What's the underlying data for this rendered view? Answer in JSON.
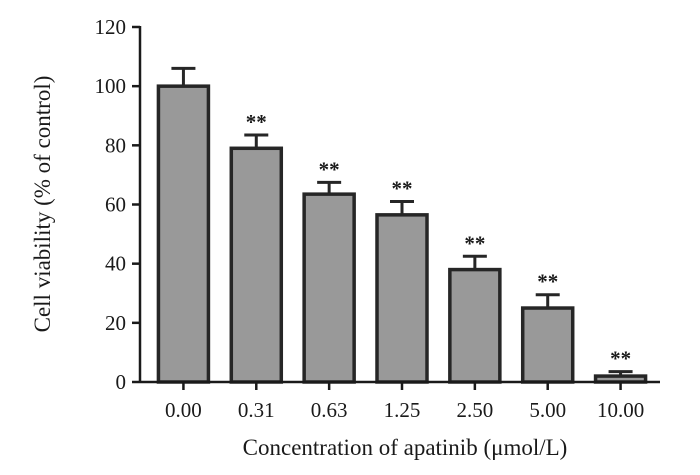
{
  "chart_data": {
    "type": "bar",
    "categories": [
      "0.00",
      "0.31",
      "0.63",
      "1.25",
      "2.50",
      "5.00",
      "10.00"
    ],
    "values": [
      100,
      79,
      63.5,
      56.5,
      38,
      25,
      2
    ],
    "errors": [
      6,
      4.5,
      4,
      4.5,
      4.5,
      4.5,
      1.5
    ],
    "annotations": [
      "",
      "**",
      "**",
      "**",
      "**",
      "**",
      "**"
    ],
    "ylim": [
      0,
      120
    ],
    "yticks": [
      "0",
      "20",
      "40",
      "60",
      "80",
      "100",
      "120"
    ],
    "ytick_values": [
      0,
      20,
      40,
      60,
      80,
      100,
      120
    ],
    "xlabel": "Concentration of apatinib (μmol/L)",
    "ylabel": "Cell viability (% of control)",
    "grid": false,
    "bar_color": "#999999",
    "edge_color": "#262626"
  }
}
